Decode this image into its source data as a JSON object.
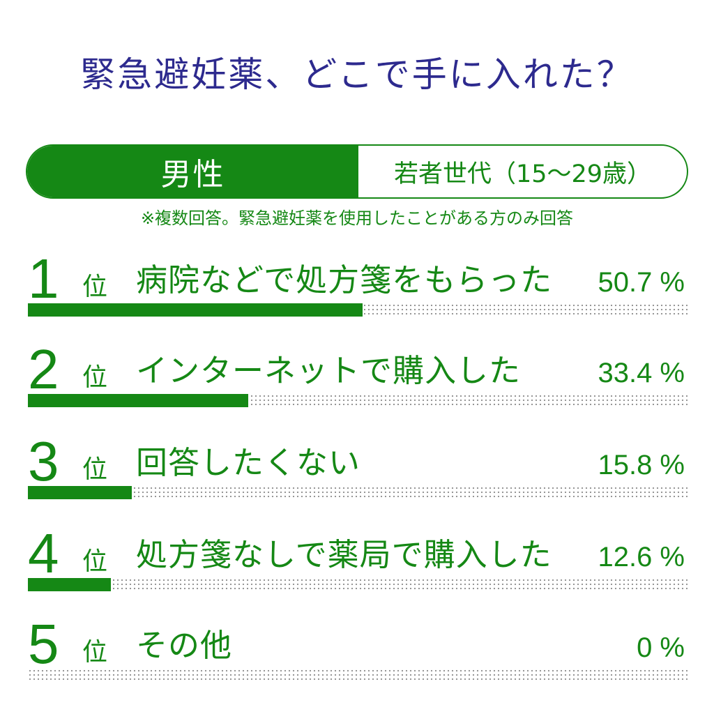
{
  "title": "緊急避妊薬、どこで手に入れた？",
  "tabs": {
    "gender": "男性",
    "age_group": "若者世代（15～29歳）"
  },
  "note": "※複数回答。緊急避妊薬を使用したことがある方のみ回答",
  "rank_unit": "位",
  "percent_suffix": "%",
  "colors": {
    "accent": "#158815",
    "title": "#2d2a8e"
  },
  "chart_data": {
    "type": "bar",
    "orientation": "horizontal",
    "title": "緊急避妊薬、どこで手に入れた？",
    "ylim": [
      0,
      100
    ],
    "ranks": [
      "1",
      "2",
      "3",
      "4",
      "5"
    ],
    "categories": [
      "病院などで処方箋をもらった",
      "インターネットで購入した",
      "回答したくない",
      "処方箋なしで薬局で購入した",
      "その他"
    ],
    "values": [
      50.7,
      33.4,
      15.8,
      12.6,
      0
    ],
    "value_labels": [
      "50.7 %",
      "33.4 %",
      "15.8 %",
      "12.6 %",
      "0 %"
    ]
  }
}
